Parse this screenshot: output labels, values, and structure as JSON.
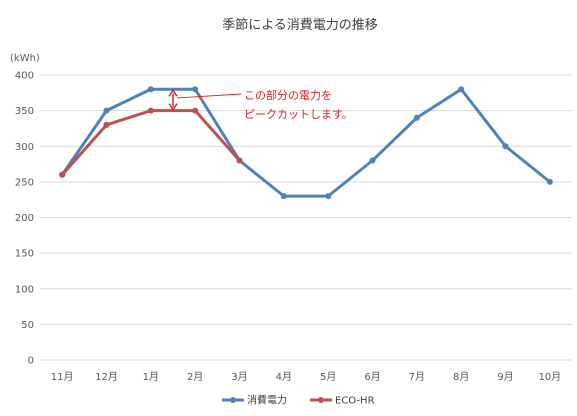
{
  "chart_data": {
    "type": "line",
    "title": "季節による消費電力の推移",
    "unit_label": "(kWh)",
    "categories": [
      "11月",
      "12月",
      "1月",
      "2月",
      "3月",
      "4月",
      "5月",
      "6月",
      "7月",
      "8月",
      "9月",
      "10月"
    ],
    "ylim": [
      0,
      400
    ],
    "yticks": [
      0,
      50,
      100,
      150,
      200,
      250,
      300,
      350,
      400
    ],
    "grid": true,
    "legend_position": "bottom",
    "series": [
      {
        "name": "消費電力",
        "color": "#4f81bd",
        "values": [
          260,
          350,
          380,
          380,
          280,
          230,
          230,
          280,
          340,
          380,
          300,
          250
        ]
      },
      {
        "name": "ECO-HR",
        "color": "#c0504d",
        "values": [
          260,
          330,
          350,
          350,
          280,
          null,
          null,
          null,
          null,
          null,
          null,
          null
        ]
      }
    ],
    "annotation": {
      "lines": [
        "この部分の電力を",
        "ピークカットします。"
      ],
      "color": "#e02020",
      "between_x": 2.5,
      "from_value": 350,
      "to_value": 380
    }
  }
}
